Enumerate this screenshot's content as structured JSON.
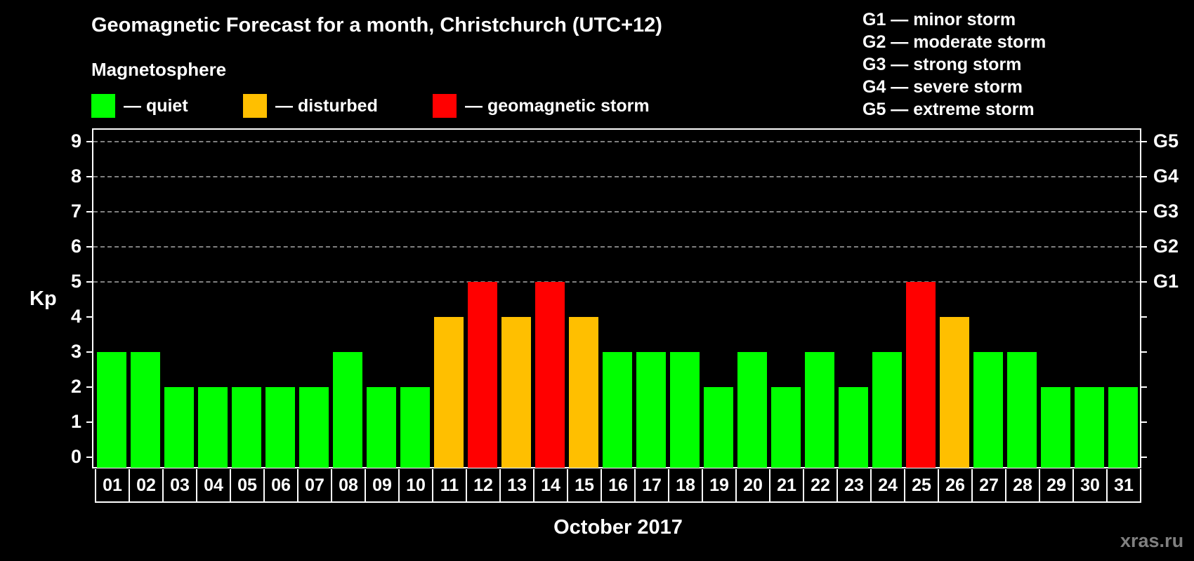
{
  "title": "Geomagnetic Forecast for a month, Christchurch (UTC+12)",
  "subtitle": "Magnetosphere",
  "legend": [
    {
      "label": "— quiet",
      "color": "#00FF00"
    },
    {
      "label": "— disturbed",
      "color": "#FFBF00"
    },
    {
      "label": "— geomagnetic storm",
      "color": "#FF0000"
    }
  ],
  "g_legend": [
    "G1 — minor storm",
    "G2 — moderate storm",
    "G3 — strong storm",
    "G4 — severe storm",
    "G5 — extreme storm"
  ],
  "watermark": "xras.ru",
  "chart_data": {
    "type": "bar",
    "title": "Geomagnetic Forecast for a month, Christchurch (UTC+12)",
    "subtitle": "Magnetosphere",
    "xlabel": "October 2017",
    "ylabel": "Kp",
    "ylim": [
      0,
      9
    ],
    "yticks": [
      0,
      1,
      2,
      3,
      4,
      5,
      6,
      7,
      8,
      9
    ],
    "right_axis_labels": {
      "5": "G1",
      "6": "G2",
      "7": "G3",
      "8": "G4",
      "9": "G5"
    },
    "grid": "dashed horizontal lines at Kp 5-9",
    "categories": [
      "01",
      "02",
      "03",
      "04",
      "05",
      "06",
      "07",
      "08",
      "09",
      "10",
      "11",
      "12",
      "13",
      "14",
      "15",
      "16",
      "17",
      "18",
      "19",
      "20",
      "21",
      "22",
      "23",
      "24",
      "25",
      "26",
      "27",
      "28",
      "29",
      "30",
      "31"
    ],
    "values": [
      3,
      3,
      2,
      2,
      2,
      2,
      2,
      3,
      2,
      2,
      4,
      5,
      4,
      5,
      4,
      3,
      3,
      3,
      2,
      3,
      2,
      3,
      2,
      3,
      5,
      4,
      3,
      3,
      2,
      2,
      2
    ],
    "status": [
      "quiet",
      "quiet",
      "quiet",
      "quiet",
      "quiet",
      "quiet",
      "quiet",
      "quiet",
      "quiet",
      "quiet",
      "disturbed",
      "storm",
      "disturbed",
      "storm",
      "disturbed",
      "quiet",
      "quiet",
      "quiet",
      "quiet",
      "quiet",
      "quiet",
      "quiet",
      "quiet",
      "quiet",
      "storm",
      "disturbed",
      "quiet",
      "quiet",
      "quiet",
      "quiet",
      "quiet"
    ],
    "colors": {
      "quiet": "#00FF00",
      "disturbed": "#FFBF00",
      "storm": "#FF0000"
    },
    "legend": [
      "quiet",
      "disturbed",
      "geomagnetic storm"
    ]
  }
}
